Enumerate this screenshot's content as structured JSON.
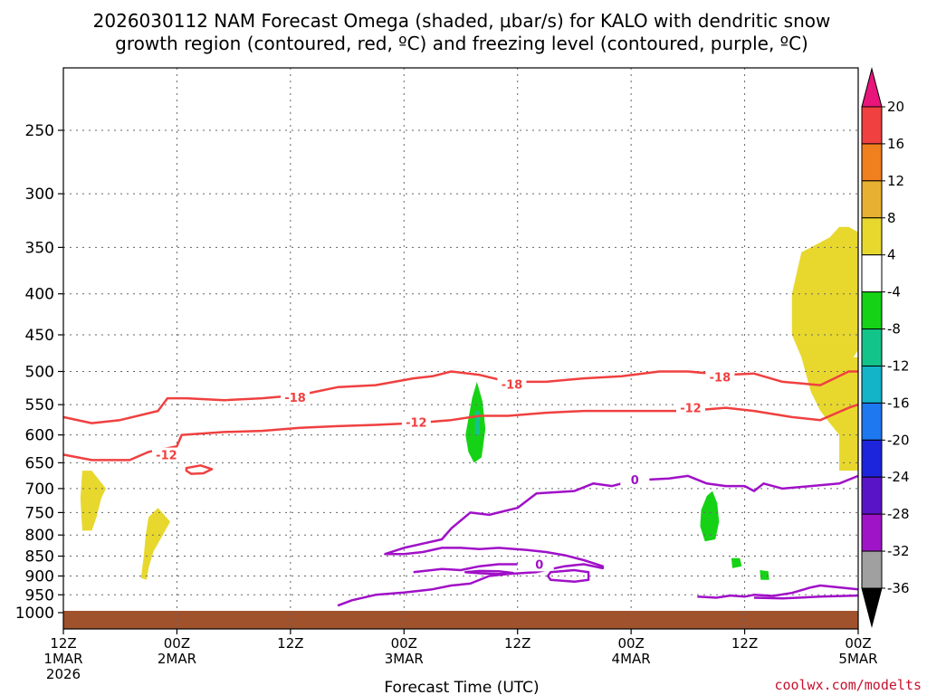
{
  "chart_data": {
    "type": "heatmap",
    "title_line1": "2026030112 NAM Forecast Omega (shaded, μbar/s) for KALO with dendritic snow",
    "title_line2": "growth region (contoured, red, ºC) and freezing level (contoured, purple, ºC)",
    "xlabel": "Forecast Time (UTC)",
    "x_ticks": [
      {
        "hour": 0,
        "l1": "12Z",
        "l2": "1MAR",
        "l3": "2026"
      },
      {
        "hour": 12,
        "l1": "00Z",
        "l2": "2MAR",
        "l3": ""
      },
      {
        "hour": 24,
        "l1": "12Z",
        "l2": "",
        "l3": ""
      },
      {
        "hour": 36,
        "l1": "00Z",
        "l2": "3MAR",
        "l3": ""
      },
      {
        "hour": 48,
        "l1": "12Z",
        "l2": "",
        "l3": ""
      },
      {
        "hour": 60,
        "l1": "00Z",
        "l2": "4MAR",
        "l3": ""
      },
      {
        "hour": 72,
        "l1": "12Z",
        "l2": "",
        "l3": ""
      },
      {
        "hour": 84,
        "l1": "00Z",
        "l2": "5MAR",
        "l3": ""
      }
    ],
    "xlim": [
      0,
      84
    ],
    "y_ticks": [
      "250",
      "300",
      "350",
      "400",
      "450",
      "500",
      "550",
      "600",
      "650",
      "700",
      "750",
      "800",
      "850",
      "900",
      "950",
      "1000"
    ],
    "ylim_hpa": [
      200,
      1030
    ],
    "colorbar": {
      "labels": [
        "20",
        "16",
        "12",
        "8",
        "4",
        "-4",
        "-8",
        "-12",
        "-16",
        "-20",
        "-24",
        "-28",
        "-32",
        "-36"
      ],
      "colors": [
        "#e8157a",
        "#f04040",
        "#f07f1e",
        "#e8b032",
        "#e8d82e",
        "#ffffff",
        "#16d216",
        "#13c48a",
        "#14b4c8",
        "#1e78f0",
        "#1c24dc",
        "#5a14c8",
        "#a014c8",
        "#a0a0a0",
        "#000000"
      ]
    },
    "series": [
      {
        "name": "-18 isotherm (dendritic growth region)",
        "color": "#f04040",
        "label": "-18",
        "points": [
          [
            0,
            570
          ],
          [
            3,
            580
          ],
          [
            6,
            575
          ],
          [
            10,
            560
          ],
          [
            11,
            540
          ],
          [
            13,
            540
          ],
          [
            17,
            543
          ],
          [
            21,
            540
          ],
          [
            25,
            535
          ],
          [
            29,
            523
          ],
          [
            33,
            520
          ],
          [
            37,
            510
          ],
          [
            39,
            507
          ],
          [
            41,
            500
          ],
          [
            44,
            505
          ],
          [
            47,
            515
          ],
          [
            51,
            515
          ],
          [
            55,
            510
          ],
          [
            59,
            507
          ],
          [
            63,
            500
          ],
          [
            66,
            500
          ],
          [
            70,
            505
          ],
          [
            73,
            503
          ],
          [
            76,
            515
          ],
          [
            80,
            520
          ],
          [
            83,
            500
          ],
          [
            84,
            500
          ]
        ],
        "labels": [
          {
            "hour": 24.5,
            "p": 540
          },
          {
            "hour": 47.4,
            "p": 520
          },
          {
            "hour": 69.4,
            "p": 509
          }
        ]
      },
      {
        "name": "-12 isotherm (dendritic growth region)",
        "color": "#f04040",
        "label": "-12",
        "points": [
          [
            0,
            635
          ],
          [
            3,
            645
          ],
          [
            7,
            645
          ],
          [
            9,
            630
          ],
          [
            12,
            620
          ],
          [
            12.5,
            600
          ],
          [
            17,
            595
          ],
          [
            21,
            593
          ],
          [
            25,
            588
          ],
          [
            29,
            585
          ],
          [
            33,
            583
          ],
          [
            37,
            580
          ],
          [
            41,
            575
          ],
          [
            44,
            568
          ],
          [
            47,
            568
          ],
          [
            51,
            563
          ],
          [
            55,
            560
          ],
          [
            59,
            560
          ],
          [
            63,
            560
          ],
          [
            66,
            560
          ],
          [
            70,
            555
          ],
          [
            73,
            560
          ],
          [
            77,
            570
          ],
          [
            80,
            575
          ],
          [
            83,
            555
          ],
          [
            84,
            550
          ]
        ],
        "labels": [
          {
            "hour": 37.3,
            "p": 580
          },
          {
            "hour": 66.3,
            "p": 556
          },
          {
            "hour": 10.9,
            "p": 637
          }
        ]
      },
      {
        "name": "-12 closed contour",
        "color": "#f04040",
        "label": "",
        "closed": true,
        "points": [
          [
            13,
            660
          ],
          [
            14.5,
            655
          ],
          [
            15.7,
            662
          ],
          [
            14.8,
            670
          ],
          [
            13.5,
            671
          ],
          [
            13,
            665
          ]
        ],
        "labels": []
      },
      {
        "name": "0 isotherm (freezing level)",
        "color": "#a010c8",
        "label": "0",
        "points": [
          [
            29,
            980
          ],
          [
            30.5,
            965
          ],
          [
            33,
            950
          ],
          [
            36,
            944
          ],
          [
            39,
            935
          ],
          [
            41,
            925
          ],
          [
            43,
            920
          ],
          [
            45,
            900
          ],
          [
            47,
            895
          ],
          [
            50,
            890
          ],
          [
            53,
            875
          ],
          [
            55,
            870
          ],
          [
            57,
            880
          ],
          [
            57,
            875
          ],
          [
            55,
            860
          ],
          [
            53,
            848
          ],
          [
            51,
            840
          ],
          [
            49,
            835
          ],
          [
            46,
            830
          ],
          [
            44,
            833
          ],
          [
            42,
            830
          ],
          [
            40,
            830
          ],
          [
            38,
            840
          ],
          [
            36,
            845
          ],
          [
            34,
            845
          ],
          [
            36,
            830
          ],
          [
            38,
            820
          ],
          [
            40,
            810
          ],
          [
            41,
            785
          ],
          [
            43,
            750
          ],
          [
            45,
            755
          ],
          [
            48,
            740
          ],
          [
            50,
            710
          ],
          [
            54,
            705
          ],
          [
            56,
            690
          ],
          [
            58,
            695
          ],
          [
            60,
            685
          ],
          [
            62,
            682
          ],
          [
            64,
            680
          ],
          [
            66,
            675
          ],
          [
            68,
            690
          ],
          [
            70,
            695
          ],
          [
            72,
            695
          ],
          [
            73,
            705
          ],
          [
            74,
            690
          ],
          [
            76,
            700
          ],
          [
            79,
            695
          ],
          [
            82,
            690
          ],
          [
            84,
            675
          ]
        ],
        "labels": [
          {
            "hour": 60.4,
            "p": 684
          }
        ]
      },
      {
        "name": "0 lower branch",
        "color": "#a010c8",
        "label": "0",
        "points": [
          [
            37,
            890
          ],
          [
            40,
            882
          ],
          [
            42,
            885
          ],
          [
            44,
            875
          ],
          [
            46,
            870
          ],
          [
            48,
            870
          ]
        ],
        "labels": [
          {
            "hour": 50.3,
            "p": 872
          }
        ]
      },
      {
        "name": "0 closed contour east",
        "color": "#a010c8",
        "label": "",
        "closed": true,
        "points": [
          [
            51.5,
            890
          ],
          [
            54,
            885
          ],
          [
            55.5,
            890
          ],
          [
            55.5,
            910
          ],
          [
            54,
            915
          ],
          [
            51.5,
            910
          ],
          [
            51.2,
            900
          ]
        ],
        "labels": []
      },
      {
        "name": "0 closed contour mid",
        "color": "#a010c8",
        "label": "",
        "closed": true,
        "points": [
          [
            42.5,
            890
          ],
          [
            44,
            893
          ],
          [
            46,
            895
          ],
          [
            47.5,
            892
          ],
          [
            46,
            888
          ],
          [
            44,
            887
          ]
        ],
        "labels": []
      },
      {
        "name": "0 surface branch",
        "color": "#a010c8",
        "label": "",
        "points": [
          [
            67,
            955
          ],
          [
            69,
            958
          ],
          [
            70.5,
            952
          ],
          [
            72,
            955
          ],
          [
            73,
            950
          ],
          [
            75,
            953
          ],
          [
            77,
            945
          ],
          [
            79,
            930
          ],
          [
            80,
            925
          ],
          [
            82,
            930
          ],
          [
            84,
            935
          ]
        ],
        "labels": []
      },
      {
        "name": "0 near-surface",
        "color": "#a010c8",
        "label": "",
        "points": [
          [
            73,
            958
          ],
          [
            76,
            960
          ],
          [
            80,
            955
          ],
          [
            84,
            952
          ]
        ],
        "labels": []
      }
    ],
    "shaded_regions": [
      {
        "name": "omega 4-8 (yellow) tall column",
        "color": "#e8d82e",
        "outline": [
          [
            78,
            355
          ],
          [
            79,
            350
          ],
          [
            80,
            345
          ],
          [
            81,
            340
          ],
          [
            82,
            330
          ],
          [
            83,
            330
          ],
          [
            84,
            335
          ],
          [
            84,
            470
          ],
          [
            83.5,
            480
          ],
          [
            84,
            480
          ],
          [
            84,
            665
          ],
          [
            82,
            665
          ],
          [
            82,
            600
          ],
          [
            81,
            580
          ],
          [
            80,
            560
          ],
          [
            79,
            530
          ],
          [
            78,
            480
          ],
          [
            77,
            450
          ],
          [
            77,
            400
          ]
        ]
      },
      {
        "name": "omega 4-8 (yellow) low left",
        "color": "#e8d82e",
        "outline": [
          [
            2,
            665
          ],
          [
            3,
            665
          ],
          [
            4.5,
            700
          ],
          [
            4,
            720
          ],
          [
            3.5,
            760
          ],
          [
            3,
            790
          ],
          [
            2,
            790
          ],
          [
            1.8,
            720
          ]
        ]
      },
      {
        "name": "omega 4-8 (yellow) low left 2",
        "color": "#e8d82e",
        "outline": [
          [
            9,
            760
          ],
          [
            10,
            740
          ],
          [
            11.3,
            770
          ],
          [
            10.5,
            800
          ],
          [
            9.5,
            840
          ],
          [
            9,
            880
          ],
          [
            8.8,
            910
          ],
          [
            8.2,
            905
          ],
          [
            8.5,
            850
          ],
          [
            8.7,
            800
          ]
        ]
      },
      {
        "name": "omega -4 to -8 (green) 1",
        "color": "#16d216",
        "outline": [
          [
            42.5,
            600
          ],
          [
            43.2,
            540
          ],
          [
            43.7,
            515
          ],
          [
            44.3,
            545
          ],
          [
            44.6,
            590
          ],
          [
            44.2,
            640
          ],
          [
            43.4,
            650
          ],
          [
            42.8,
            630
          ]
        ]
      },
      {
        "name": "omega -4 to -8 (green) 2",
        "color": "#16d216",
        "outline": [
          [
            67.4,
            745
          ],
          [
            68,
            715
          ],
          [
            68.6,
            705
          ],
          [
            69.1,
            730
          ],
          [
            69.3,
            770
          ],
          [
            68.9,
            810
          ],
          [
            67.8,
            815
          ],
          [
            67.3,
            780
          ]
        ]
      },
      {
        "name": "omega -4 to -8 (green) 3",
        "color": "#16d216",
        "outline": [
          [
            70.6,
            855
          ],
          [
            71.5,
            855
          ],
          [
            71.7,
            875
          ],
          [
            70.7,
            880
          ]
        ]
      },
      {
        "name": "omega -4 to -8 (green) 4",
        "color": "#16d216",
        "outline": [
          [
            73.6,
            885
          ],
          [
            74.5,
            888
          ],
          [
            74.6,
            910
          ],
          [
            73.7,
            910
          ]
        ]
      },
      {
        "name": "omega -8 to -12 (teal) core",
        "color": "#13c48a",
        "outline": [
          [
            43.5,
            560
          ],
          [
            44,
            560
          ],
          [
            44,
            600
          ],
          [
            43.5,
            600
          ]
        ]
      }
    ],
    "terrain": {
      "name": "ground",
      "color": "#a0522d",
      "top_hpa": 1000
    },
    "credit": "coolwx.com/modelts"
  }
}
